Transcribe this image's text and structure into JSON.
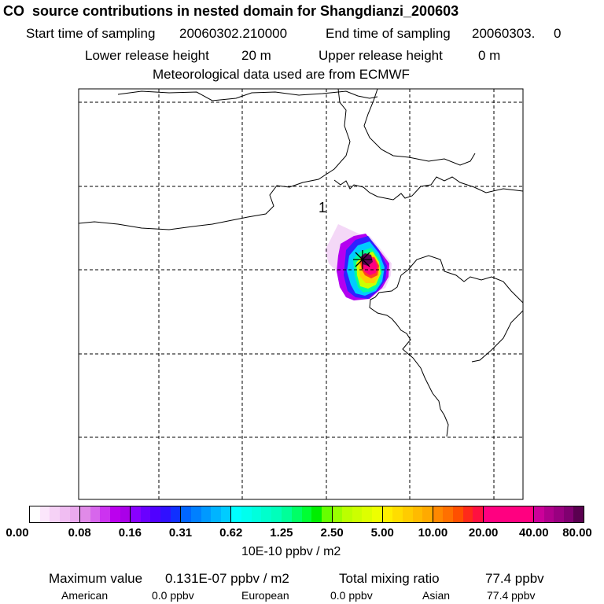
{
  "header": {
    "title": "CO  source contributions in nested domain for Shangdianzi_200603",
    "start_label": "Start time of sampling",
    "start_value": "20060302.210000",
    "end_label": "End time of sampling",
    "end_value": "20060303.     0",
    "lower_label": "Lower release height",
    "lower_value": "20 m",
    "upper_label": "Upper release height",
    "upper_value": "0 m",
    "met_text": "Meteorological data used are from ECMWF"
  },
  "map": {
    "release_label": "1",
    "release_marker_icon": "asterisk-icon"
  },
  "colorbar": {
    "ticks": [
      "0.00",
      "0.08",
      "0.16",
      "0.31",
      "0.62",
      "1.25",
      "2.50",
      "5.00",
      "10.00",
      "20.00",
      "40.00",
      "80.00"
    ],
    "units": "10E-10 ppbv / m2",
    "sections": [
      [
        "#ffffff",
        "#fbe6fb",
        "#f6d2f6",
        "#f0bdf2",
        "#ebaaee"
      ],
      [
        "#e08ae8",
        "#d766ec",
        "#cc33f0",
        "#bb00ee",
        "#aa00e8"
      ],
      [
        "#8800ff",
        "#6a00ff",
        "#5000ff",
        "#3010ff",
        "#1030ff"
      ],
      [
        "#0066ff",
        "#0080ff",
        "#0099ff",
        "#00b4ff",
        "#00ccff"
      ],
      [
        "#00ffff",
        "#00ffee",
        "#00ffdd",
        "#00ffcc",
        "#00ffbb"
      ],
      [
        "#00ff99",
        "#00ff66",
        "#00ff33",
        "#00ee00",
        "#66ff00"
      ],
      [
        "#99ff00",
        "#bbff00",
        "#ccff00",
        "#ddff00",
        "#eeff00"
      ],
      [
        "#ffee00",
        "#ffdd00",
        "#ffcc00",
        "#ffbb00",
        "#ffaa00"
      ],
      [
        "#ff8800",
        "#ff7000",
        "#ff5000",
        "#ff2a1a",
        "#ff1040"
      ],
      [
        "#ff0080",
        "#ff0080",
        "#ff0080",
        "#ff0080",
        "#ff0080"
      ],
      [
        "#cc0099",
        "#b0008c",
        "#990080",
        "#800070",
        "#5a0050"
      ]
    ]
  },
  "summary": {
    "max_label": "Maximum value",
    "max_value": "0.131E-07 ppbv / m2",
    "total_label": "Total mixing ratio",
    "total_value": "77.4 ppbv",
    "american_label": "American",
    "american_value": "0.0 ppbv",
    "european_label": "European",
    "european_value": "0.0 ppbv",
    "asian_label": "Asian",
    "asian_value": "77.4 ppbv"
  }
}
